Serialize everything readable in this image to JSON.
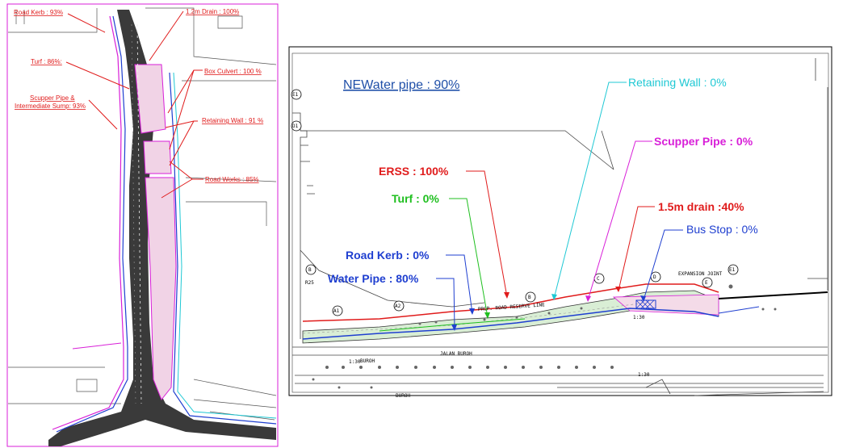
{
  "left_drawing": {
    "labels": [
      {
        "id": "road-kerb",
        "text": "Road Kerb : 93%"
      },
      {
        "id": "drain-1-2m",
        "text": "1.2m Drain : 100%"
      },
      {
        "id": "turf",
        "text": "Turf : 86%:"
      },
      {
        "id": "box-culvert",
        "text": "Box Culvert : 100 %"
      },
      {
        "id": "scupper-line1",
        "text": "Scupper Pipe &"
      },
      {
        "id": "scupper-line2",
        "text": "Intermediate Sump: 93%"
      },
      {
        "id": "retaining-wall",
        "text": "Retaining Wall : 91 %"
      },
      {
        "id": "road-works",
        "text": "Road Works : 85%"
      }
    ]
  },
  "right_drawing": {
    "labels": [
      {
        "id": "newater",
        "text": "NEWater pipe : 90%",
        "color": "#1f4fa8"
      },
      {
        "id": "retaining-wall",
        "text": "Retaining Wall : 0%",
        "color": "#1fc8d4"
      },
      {
        "id": "scupper-pipe",
        "text": "Scupper Pipe : 0%",
        "color": "#d81fd8"
      },
      {
        "id": "erss",
        "text": "ERSS : 100%",
        "color": "#e01b1b"
      },
      {
        "id": "turf",
        "text": "Turf : 0%",
        "color": "#1fbf1f"
      },
      {
        "id": "drain-1-5m",
        "text": "1.5m drain :40%",
        "color": "#e01b1b"
      },
      {
        "id": "bus-stop",
        "text": "Bus Stop : 0%",
        "color": "#1f3fd0"
      },
      {
        "id": "road-kerb",
        "text": "Road Kerb : 0%",
        "color": "#1f3fd0"
      },
      {
        "id": "water-pipe",
        "text": "Water Pipe : 80%",
        "color": "#1f3fd0"
      }
    ],
    "markers": [
      "E1",
      "D1",
      "B",
      "A1",
      "A2",
      "B",
      "C",
      "D",
      "E",
      "E1"
    ],
    "cad_text": {
      "road_reserve": "PROP. ROAD RESERVE LINE",
      "expansion_joint": "EXPANSION JOINT",
      "jalan_buroh": "JALAN BUROH",
      "buroh": "BUROH",
      "scale1": "1:30",
      "scale2": "1:30",
      "r25": "R25"
    }
  },
  "colors": {
    "left_frame": "#d81fd8",
    "red_label": "#e01b1b",
    "road_fill": "#3a3a3a"
  }
}
